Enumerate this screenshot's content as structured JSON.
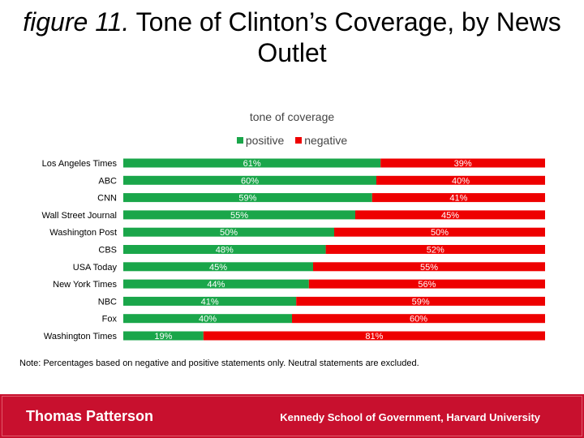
{
  "title": {
    "italic": "figure 11.",
    "rest": " Tone of Clinton’s Coverage, by News Outlet"
  },
  "subtitle": "tone of coverage",
  "legend": [
    {
      "label": "positive",
      "color": "#1aa64a"
    },
    {
      "label": "negative",
      "color": "#ee0000"
    }
  ],
  "chart_data": {
    "type": "bar",
    "orientation": "horizontal",
    "stacked": true,
    "title": "tone of coverage",
    "categories": [
      "Los Angeles Times",
      "ABC",
      "CNN",
      "Wall Street Journal",
      "Washington Post",
      "CBS",
      "USA Today",
      "New York Times",
      "NBC",
      "Fox",
      "Washington Times"
    ],
    "series": [
      {
        "name": "positive",
        "color": "#1aa64a",
        "values": [
          61,
          60,
          59,
          55,
          50,
          48,
          45,
          44,
          41,
          40,
          19
        ]
      },
      {
        "name": "negative",
        "color": "#ee0000",
        "values": [
          39,
          40,
          41,
          45,
          50,
          52,
          55,
          56,
          59,
          60,
          81
        ]
      }
    ],
    "value_suffix": "%",
    "xlim": [
      0,
      100
    ],
    "legend_position": "top"
  },
  "note": "Note: Percentages based on negative and positive statements only. Neutral statements are excluded.",
  "footer": {
    "left": "Thomas Patterson",
    "right": "Kennedy School of Government, Harvard University",
    "color": "#c8102e"
  }
}
